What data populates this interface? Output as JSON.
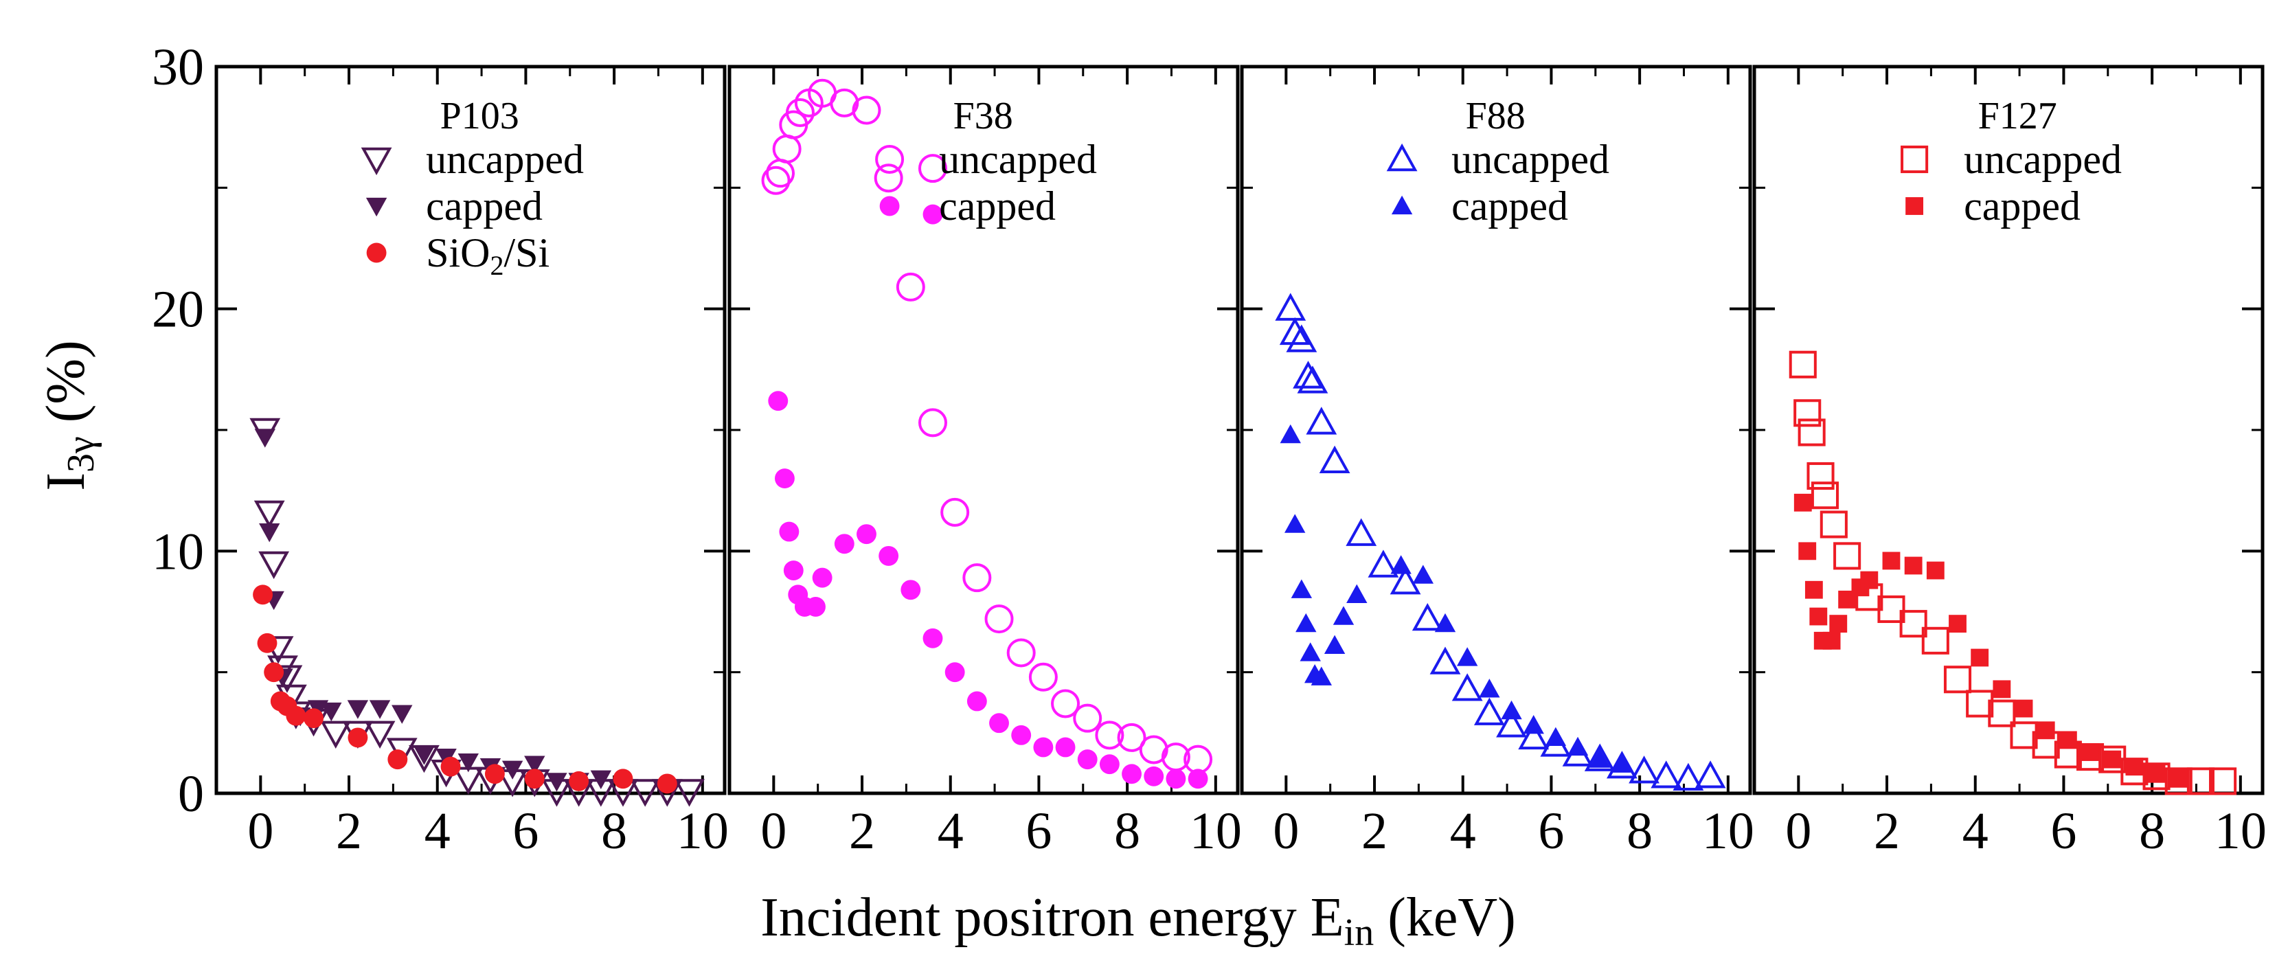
{
  "figure": {
    "ylabel": "I",
    "ylabel_sub": "3γ",
    "ylabel_unit": " (%)",
    "xlabel": "Incident positron energy E",
    "xlabel_sub": "in",
    "xlabel_unit": " (keV)"
  },
  "chart_data": [
    {
      "type": "scatter",
      "panel_title": "P103",
      "xlim": [
        -1,
        10.5
      ],
      "ylim": [
        0,
        30
      ],
      "x_ticks": [
        0,
        2,
        4,
        6,
        8,
        10
      ],
      "y_ticks": [
        0,
        10,
        20,
        30
      ],
      "legend_placement": "top-right",
      "series": [
        {
          "name": "uncapped",
          "marker": "triangle-down-open",
          "color": "#4b1852",
          "x": [
            0.1,
            0.2,
            0.3,
            0.4,
            0.5,
            0.6,
            0.7,
            0.8,
            1.2,
            1.7,
            2.2,
            2.7,
            3.2,
            3.7,
            4.2,
            4.7,
            5.2,
            5.7,
            6.2,
            6.7,
            7.2,
            7.7,
            8.2,
            8.7,
            9.2,
            9.7
          ],
          "y": [
            15.0,
            11.6,
            9.5,
            6.0,
            5.2,
            4.8,
            4.0,
            3.3,
            3.0,
            2.5,
            2.5,
            2.5,
            1.8,
            1.5,
            0.9,
            0.6,
            0.6,
            0.5,
            0.5,
            0.1,
            0.1,
            0.1,
            0.1,
            0.1,
            0.1,
            0.1
          ]
        },
        {
          "name": "capped",
          "marker": "triangle-down-filled",
          "color": "#4b1852",
          "x": [
            0.1,
            0.2,
            0.3,
            0.5,
            0.9,
            1.3,
            1.6,
            2.2,
            2.7,
            3.2,
            3.7,
            4.2,
            4.7,
            5.2,
            5.7,
            6.2,
            6.7,
            7.2,
            7.7
          ],
          "y": [
            14.7,
            10.8,
            8.0,
            4.8,
            3.2,
            3.5,
            3.4,
            3.5,
            3.5,
            3.3,
            1.6,
            1.5,
            1.3,
            1.1,
            1.0,
            1.2,
            0.5,
            0.5,
            0.6
          ]
        },
        {
          "name": "SiO2/Si",
          "marker": "circle-filled",
          "color": "#ee1c25",
          "x": [
            0.05,
            0.15,
            0.3,
            0.45,
            0.6,
            0.8,
            1.2,
            2.2,
            3.1,
            4.3,
            5.3,
            6.2,
            7.2,
            8.2,
            9.2
          ],
          "y": [
            8.2,
            6.2,
            5.0,
            3.8,
            3.6,
            3.2,
            3.1,
            2.3,
            1.4,
            1.1,
            0.8,
            0.6,
            0.5,
            0.6,
            0.4
          ]
        }
      ]
    },
    {
      "type": "scatter",
      "panel_title": "F38",
      "xlim": [
        -1,
        10.5
      ],
      "ylim": [
        0,
        30
      ],
      "x_ticks": [
        0,
        2,
        4,
        6,
        8,
        10
      ],
      "y_ticks": [
        0,
        10,
        20,
        30
      ],
      "legend_placement": "top-right",
      "series": [
        {
          "name": "uncapped",
          "marker": "circle-open",
          "color": "#ff1aff",
          "x": [
            0.05,
            0.15,
            0.3,
            0.45,
            0.6,
            0.8,
            1.1,
            1.6,
            2.1,
            2.6,
            3.1,
            3.6,
            3.6,
            4.1,
            4.6,
            5.1,
            5.6,
            6.1,
            6.6,
            7.1,
            7.6,
            8.1,
            8.6,
            9.1,
            9.6
          ],
          "y": [
            25.3,
            25.6,
            26.6,
            27.6,
            28.1,
            28.5,
            28.9,
            28.5,
            28.2,
            25.4,
            20.9,
            25.8,
            15.3,
            11.6,
            8.9,
            7.2,
            5.8,
            4.8,
            3.7,
            3.1,
            2.4,
            2.3,
            1.8,
            1.5,
            1.4
          ]
        },
        {
          "name": "capped",
          "marker": "circle-filled",
          "color": "#ff1aff",
          "x": [
            0.1,
            0.25,
            0.35,
            0.45,
            0.55,
            0.7,
            0.95,
            1.1,
            1.6,
            2.1,
            2.6,
            3.1,
            3.6,
            3.6,
            4.1,
            4.6,
            5.1,
            5.6,
            6.1,
            6.6,
            7.1,
            7.6,
            8.1,
            8.6,
            9.1,
            9.6
          ],
          "y": [
            16.2,
            13.0,
            10.8,
            9.2,
            8.2,
            7.7,
            7.7,
            8.9,
            10.3,
            10.7,
            9.8,
            8.4,
            23.9,
            6.4,
            5.0,
            3.8,
            2.9,
            2.4,
            1.9,
            1.9,
            1.4,
            1.2,
            0.8,
            0.7,
            0.6,
            0.6
          ]
        }
      ]
    },
    {
      "type": "scatter",
      "panel_title": "F88",
      "xlim": [
        -1,
        10.5
      ],
      "ylim": [
        0,
        30
      ],
      "x_ticks": [
        0,
        2,
        4,
        6,
        8,
        10
      ],
      "y_ticks": [
        0,
        10,
        20,
        30
      ],
      "legend_placement": "top-right",
      "series": [
        {
          "name": "uncapped",
          "marker": "triangle-up-open",
          "color": "#1a1aee",
          "x": [
            0.1,
            0.2,
            0.35,
            0.5,
            0.6,
            0.8,
            1.1,
            1.7,
            2.2,
            2.7,
            3.2,
            3.6,
            4.1,
            4.6,
            5.1,
            5.6,
            6.1,
            6.6,
            7.1,
            7.6,
            8.1,
            8.6,
            9.1,
            9.6
          ],
          "y": [
            20.0,
            19.0,
            18.7,
            17.2,
            17.0,
            15.3,
            13.7,
            10.7,
            9.4,
            8.7,
            7.2,
            5.4,
            4.3,
            3.3,
            2.8,
            2.3,
            2.0,
            1.6,
            1.4,
            1.1,
            0.9,
            0.7,
            0.6,
            0.7
          ]
        },
        {
          "name": "capped",
          "marker": "triangle-up-filled",
          "color": "#1a1aee",
          "x": [
            0.1,
            0.2,
            0.35,
            0.45,
            0.55,
            0.65,
            0.8,
            1.1,
            1.3,
            1.6,
            2.6,
            3.1,
            3.6,
            4.1,
            4.6,
            5.1,
            5.6,
            6.1,
            6.6,
            7.1,
            7.6
          ],
          "y": [
            14.8,
            11.1,
            8.4,
            7.0,
            5.8,
            4.9,
            4.8,
            6.1,
            7.3,
            8.2,
            9.4,
            9.0,
            7.0,
            5.6,
            4.3,
            3.4,
            2.8,
            2.3,
            1.9,
            1.4,
            1.2
          ]
        }
      ]
    },
    {
      "type": "scatter",
      "panel_title": "F127",
      "xlim": [
        -1,
        10.5
      ],
      "ylim": [
        0,
        30
      ],
      "x_ticks": [
        0,
        2,
        4,
        6,
        8,
        10
      ],
      "y_ticks": [
        0,
        10,
        20,
        30
      ],
      "legend_placement": "top-right",
      "series": [
        {
          "name": "uncapped",
          "marker": "square-open",
          "color": "#ee1c25",
          "x": [
            0.1,
            0.2,
            0.3,
            0.5,
            0.6,
            0.8,
            1.1,
            1.6,
            2.1,
            2.6,
            3.1,
            3.6,
            4.1,
            4.6,
            5.1,
            5.6,
            6.1,
            6.6,
            7.1,
            7.6,
            8.1,
            8.6,
            9.1,
            9.6
          ],
          "y": [
            17.7,
            15.7,
            14.9,
            13.1,
            12.3,
            11.1,
            9.8,
            8.1,
            7.6,
            7.0,
            6.3,
            4.7,
            3.7,
            3.3,
            2.4,
            2.0,
            1.6,
            1.5,
            1.4,
            0.9,
            0.7,
            0.5,
            0.5,
            0.5
          ]
        },
        {
          "name": "capped",
          "marker": "square-filled",
          "color": "#ee1c25",
          "x": [
            0.1,
            0.2,
            0.35,
            0.45,
            0.55,
            0.75,
            0.9,
            1.1,
            1.4,
            1.6,
            2.1,
            2.6,
            3.1,
            3.6,
            4.1,
            4.6,
            5.1,
            5.6,
            6.1,
            6.6,
            7.1,
            7.6,
            8.1,
            8.6
          ],
          "y": [
            12.0,
            10.0,
            8.4,
            7.3,
            6.3,
            6.3,
            7.0,
            8.0,
            8.5,
            8.8,
            9.6,
            9.4,
            9.2,
            7.0,
            5.6,
            4.3,
            3.5,
            2.6,
            2.2,
            1.7,
            1.4,
            1.1,
            0.8,
            0.6
          ]
        }
      ]
    }
  ]
}
